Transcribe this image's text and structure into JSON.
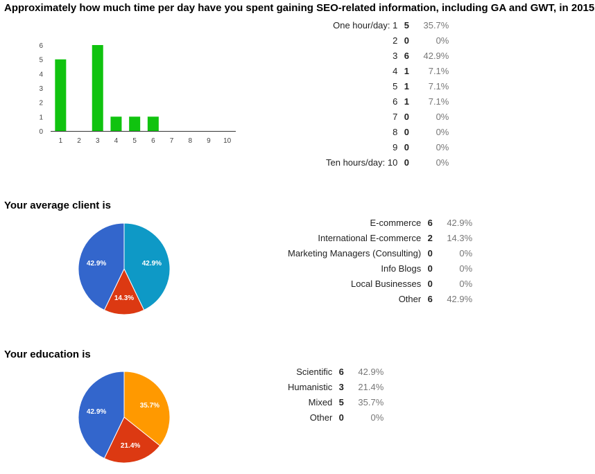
{
  "q1": {
    "title": "Approximately how much time per day have you spent gaining SEO-related information, including GA and GWT, in 2015?",
    "rows": [
      {
        "label": "One hour/day: 1",
        "count": "5",
        "pct": "35.7%"
      },
      {
        "label": "2",
        "count": "0",
        "pct": "0%"
      },
      {
        "label": "3",
        "count": "6",
        "pct": "42.9%"
      },
      {
        "label": "4",
        "count": "1",
        "pct": "7.1%"
      },
      {
        "label": "5",
        "count": "1",
        "pct": "7.1%"
      },
      {
        "label": "6",
        "count": "1",
        "pct": "7.1%"
      },
      {
        "label": "7",
        "count": "0",
        "pct": "0%"
      },
      {
        "label": "8",
        "count": "0",
        "pct": "0%"
      },
      {
        "label": "9",
        "count": "0",
        "pct": "0%"
      },
      {
        "label": "Ten hours/day: 10",
        "count": "0",
        "pct": "0%"
      }
    ]
  },
  "q2": {
    "title": "Your average client is",
    "rows": [
      {
        "label": "E-commerce",
        "count": "6",
        "pct": "42.9%"
      },
      {
        "label": "International E-commerce",
        "count": "2",
        "pct": "14.3%"
      },
      {
        "label": "Marketing Managers (Consulting)",
        "count": "0",
        "pct": "0%"
      },
      {
        "label": "Info Blogs",
        "count": "0",
        "pct": "0%"
      },
      {
        "label": "Local Businesses",
        "count": "0",
        "pct": "0%"
      },
      {
        "label": "Other",
        "count": "6",
        "pct": "42.9%"
      }
    ]
  },
  "q3": {
    "title": "Your education is",
    "rows": [
      {
        "label": "Scientific",
        "count": "6",
        "pct": "42.9%"
      },
      {
        "label": "Humanistic",
        "count": "3",
        "pct": "21.4%"
      },
      {
        "label": "Mixed",
        "count": "5",
        "pct": "35.7%"
      },
      {
        "label": "Other",
        "count": "0",
        "pct": "0%"
      }
    ]
  },
  "chart_data": [
    {
      "type": "bar",
      "categories": [
        "1",
        "2",
        "3",
        "4",
        "5",
        "6",
        "7",
        "8",
        "9",
        "10"
      ],
      "values": [
        5,
        0,
        6,
        1,
        1,
        1,
        0,
        0,
        0,
        0
      ],
      "yticks": [
        "0",
        "1",
        "2",
        "3",
        "4",
        "5",
        "6"
      ],
      "ylim": [
        0,
        6
      ],
      "color": "#10c30f",
      "grid": false
    },
    {
      "type": "pie",
      "slices": [
        {
          "name": "E-commerce",
          "value": 6,
          "label": "42.9%",
          "color": "#0e99c6"
        },
        {
          "name": "International E-commerce",
          "value": 2,
          "label": "14.3%",
          "color": "#dc3912"
        },
        {
          "name": "Other",
          "value": 6,
          "label": "42.9%",
          "color": "#3366cc"
        }
      ]
    },
    {
      "type": "pie",
      "slices": [
        {
          "name": "Mixed",
          "value": 5,
          "label": "35.7%",
          "color": "#ff9900"
        },
        {
          "name": "Humanistic",
          "value": 3,
          "label": "21.4%",
          "color": "#dc3912"
        },
        {
          "name": "Scientific",
          "value": 6,
          "label": "42.9%",
          "color": "#3366cc"
        }
      ]
    }
  ]
}
